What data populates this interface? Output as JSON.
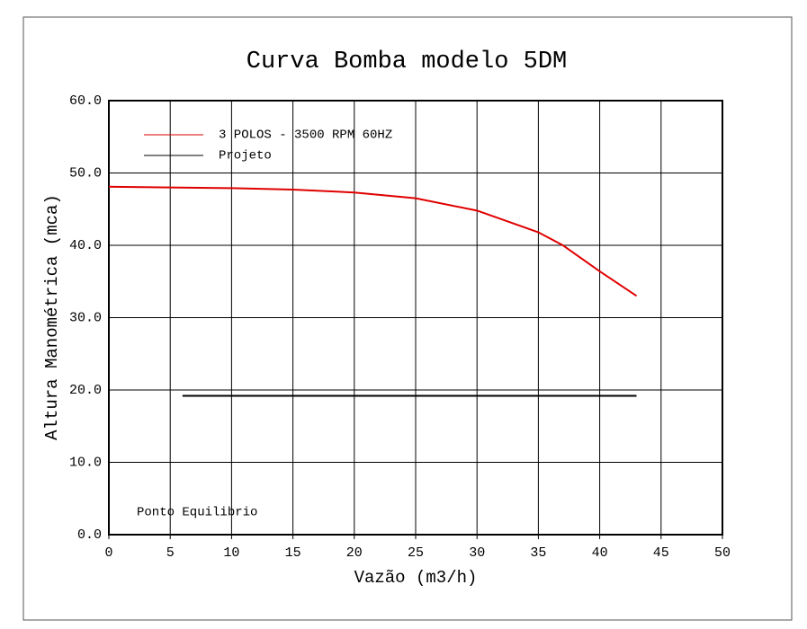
{
  "chart_data": {
    "type": "line",
    "title": "Curva Bomba modelo 5DM",
    "xlabel": "Vazão (m3/h)",
    "ylabel": "Altura Manométrica (mca)",
    "annotation": "Ponto Equilibrio",
    "xlim": [
      0,
      50
    ],
    "xticks": [
      0,
      5,
      10,
      15,
      20,
      25,
      30,
      35,
      40,
      45,
      50
    ],
    "ylim": [
      0,
      60
    ],
    "yticks": [
      {
        "value": 0,
        "label": "0.0"
      },
      {
        "value": 10,
        "label": "10.0"
      },
      {
        "value": 20,
        "label": "20.0"
      },
      {
        "value": 30,
        "label": "30.0"
      },
      {
        "value": 40,
        "label": "40.0"
      },
      {
        "value": 50,
        "label": "50.0"
      },
      {
        "value": 60,
        "label": "60.0"
      }
    ],
    "grid": true,
    "legend": "upper left",
    "series": [
      {
        "name": "3 POLOS - 3500 RPM 60HZ",
        "color": "#e00000",
        "x": [
          0,
          5,
          10,
          15,
          20,
          25,
          30,
          35,
          37,
          40,
          43
        ],
        "values": [
          48.1,
          48.0,
          47.9,
          47.7,
          47.3,
          46.5,
          44.8,
          41.8,
          40.0,
          36.4,
          33.0
        ]
      },
      {
        "name": "Projeto",
        "color": "#000000",
        "x": [
          6,
          43
        ],
        "values": [
          19.2,
          19.2
        ]
      }
    ]
  }
}
